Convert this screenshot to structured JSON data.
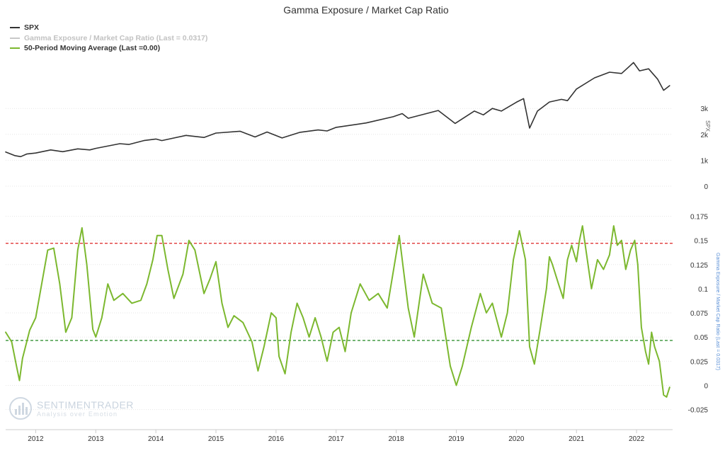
{
  "chart_data": {
    "type": "line",
    "title": "Gamma Exposure / Market Cap Ratio",
    "legend": {
      "placement": "top-left",
      "items": [
        {
          "label": "SPX",
          "color": "#333333"
        },
        {
          "label": "Gamma Exposure / Market Cap Ratio (Last = 0.0317)",
          "color": "#c8c8c8"
        },
        {
          "label": "50-Period Moving Average (Last =0.00)",
          "color": "#7cb82f"
        }
      ]
    },
    "x_axis": {
      "ticks": [
        "2012",
        "2013",
        "2014",
        "2015",
        "2016",
        "2017",
        "2018",
        "2019",
        "2020",
        "2021",
        "2022"
      ],
      "range": [
        2011.5,
        2022.6
      ]
    },
    "panels": [
      {
        "name": "spx",
        "ylabel": "SPX",
        "ylim": [
          0,
          5000
        ],
        "yticks": [
          {
            "value": 0,
            "label": "0"
          },
          {
            "value": 1000,
            "label": "1k"
          },
          {
            "value": 2000,
            "label": "2k"
          },
          {
            "value": 3000,
            "label": "3k"
          }
        ],
        "series": [
          {
            "name": "SPX",
            "color": "#333333",
            "points": [
              [
                2011.5,
                1320
              ],
              [
                2011.65,
                1180
              ],
              [
                2011.75,
                1140
              ],
              [
                2011.85,
                1240
              ],
              [
                2012.0,
                1280
              ],
              [
                2012.25,
                1400
              ],
              [
                2012.45,
                1330
              ],
              [
                2012.7,
                1440
              ],
              [
                2012.9,
                1400
              ],
              [
                2013.0,
                1460
              ],
              [
                2013.4,
                1640
              ],
              [
                2013.55,
                1610
              ],
              [
                2013.8,
                1760
              ],
              [
                2014.0,
                1820
              ],
              [
                2014.1,
                1760
              ],
              [
                2014.5,
                1960
              ],
              [
                2014.8,
                1880
              ],
              [
                2015.0,
                2050
              ],
              [
                2015.4,
                2120
              ],
              [
                2015.65,
                1900
              ],
              [
                2015.85,
                2090
              ],
              [
                2016.1,
                1860
              ],
              [
                2016.4,
                2080
              ],
              [
                2016.7,
                2170
              ],
              [
                2016.85,
                2130
              ],
              [
                2017.0,
                2270
              ],
              [
                2017.5,
                2440
              ],
              [
                2017.95,
                2680
              ],
              [
                2018.1,
                2800
              ],
              [
                2018.2,
                2620
              ],
              [
                2018.7,
                2920
              ],
              [
                2018.98,
                2420
              ],
              [
                2019.3,
                2900
              ],
              [
                2019.45,
                2750
              ],
              [
                2019.6,
                3000
              ],
              [
                2019.75,
                2900
              ],
              [
                2020.0,
                3240
              ],
              [
                2020.12,
                3380
              ],
              [
                2020.22,
                2240
              ],
              [
                2020.35,
                2900
              ],
              [
                2020.55,
                3250
              ],
              [
                2020.75,
                3350
              ],
              [
                2020.85,
                3300
              ],
              [
                2021.0,
                3750
              ],
              [
                2021.3,
                4180
              ],
              [
                2021.55,
                4400
              ],
              [
                2021.75,
                4350
              ],
              [
                2021.95,
                4770
              ],
              [
                2022.05,
                4450
              ],
              [
                2022.2,
                4530
              ],
              [
                2022.35,
                4130
              ],
              [
                2022.45,
                3700
              ],
              [
                2022.55,
                3880
              ]
            ]
          }
        ]
      },
      {
        "name": "gamma",
        "ylabel": "Gamma Exposure / Market Cap Ratio (Last = 0.0317)",
        "ylim": [
          -0.037,
          0.19
        ],
        "yticks": [
          {
            "value": -0.025,
            "label": "-0.025"
          },
          {
            "value": 0,
            "label": "0"
          },
          {
            "value": 0.025,
            "label": "0.025"
          },
          {
            "value": 0.05,
            "label": "0.05"
          },
          {
            "value": 0.075,
            "label": "0.075"
          },
          {
            "value": 0.1,
            "label": "0.1"
          },
          {
            "value": 0.125,
            "label": "0.125"
          },
          {
            "value": 0.15,
            "label": "0.15"
          },
          {
            "value": 0.175,
            "label": "0.175"
          }
        ],
        "reference_lines": [
          {
            "value": 0.147,
            "color": "#dd2222"
          },
          {
            "value": 0.0465,
            "color": "#228822"
          }
        ],
        "series": [
          {
            "name": "50-Period Moving Average (Last =0.00)",
            "color": "#7cb82f",
            "points": [
              [
                2011.5,
                0.055
              ],
              [
                2011.6,
                0.045
              ],
              [
                2011.68,
                0.02
              ],
              [
                2011.73,
                0.005
              ],
              [
                2011.78,
                0.028
              ],
              [
                2011.9,
                0.057
              ],
              [
                2012.0,
                0.07
              ],
              [
                2012.1,
                0.105
              ],
              [
                2012.2,
                0.14
              ],
              [
                2012.3,
                0.142
              ],
              [
                2012.4,
                0.105
              ],
              [
                2012.5,
                0.055
              ],
              [
                2012.6,
                0.07
              ],
              [
                2012.7,
                0.14
              ],
              [
                2012.77,
                0.163
              ],
              [
                2012.85,
                0.125
              ],
              [
                2012.95,
                0.058
              ],
              [
                2013.0,
                0.05
              ],
              [
                2013.1,
                0.07
              ],
              [
                2013.2,
                0.105
              ],
              [
                2013.3,
                0.088
              ],
              [
                2013.45,
                0.095
              ],
              [
                2013.6,
                0.085
              ],
              [
                2013.75,
                0.088
              ],
              [
                2013.85,
                0.105
              ],
              [
                2013.95,
                0.13
              ],
              [
                2014.02,
                0.155
              ],
              [
                2014.1,
                0.155
              ],
              [
                2014.2,
                0.12
              ],
              [
                2014.3,
                0.09
              ],
              [
                2014.45,
                0.115
              ],
              [
                2014.55,
                0.15
              ],
              [
                2014.65,
                0.14
              ],
              [
                2014.8,
                0.095
              ],
              [
                2014.9,
                0.11
              ],
              [
                2015.0,
                0.128
              ],
              [
                2015.1,
                0.085
              ],
              [
                2015.2,
                0.06
              ],
              [
                2015.3,
                0.072
              ],
              [
                2015.45,
                0.065
              ],
              [
                2015.6,
                0.045
              ],
              [
                2015.7,
                0.015
              ],
              [
                2015.8,
                0.04
              ],
              [
                2015.92,
                0.075
              ],
              [
                2016.0,
                0.07
              ],
              [
                2016.05,
                0.03
              ],
              [
                2016.15,
                0.012
              ],
              [
                2016.25,
                0.055
              ],
              [
                2016.35,
                0.085
              ],
              [
                2016.45,
                0.07
              ],
              [
                2016.55,
                0.05
              ],
              [
                2016.65,
                0.07
              ],
              [
                2016.75,
                0.05
              ],
              [
                2016.85,
                0.025
              ],
              [
                2016.95,
                0.055
              ],
              [
                2017.05,
                0.06
              ],
              [
                2017.15,
                0.035
              ],
              [
                2017.25,
                0.075
              ],
              [
                2017.4,
                0.105
              ],
              [
                2017.55,
                0.088
              ],
              [
                2017.7,
                0.095
              ],
              [
                2017.85,
                0.08
              ],
              [
                2017.97,
                0.125
              ],
              [
                2018.05,
                0.155
              ],
              [
                2018.12,
                0.12
              ],
              [
                2018.2,
                0.08
              ],
              [
                2018.3,
                0.05
              ],
              [
                2018.45,
                0.115
              ],
              [
                2018.6,
                0.085
              ],
              [
                2018.75,
                0.08
              ],
              [
                2018.9,
                0.02
              ],
              [
                2019.0,
                0.0
              ],
              [
                2019.1,
                0.02
              ],
              [
                2019.25,
                0.06
              ],
              [
                2019.4,
                0.095
              ],
              [
                2019.5,
                0.075
              ],
              [
                2019.6,
                0.085
              ],
              [
                2019.75,
                0.05
              ],
              [
                2019.85,
                0.075
              ],
              [
                2019.95,
                0.13
              ],
              [
                2020.05,
                0.16
              ],
              [
                2020.15,
                0.13
              ],
              [
                2020.22,
                0.04
              ],
              [
                2020.3,
                0.022
              ],
              [
                2020.4,
                0.06
              ],
              [
                2020.5,
                0.1
              ],
              [
                2020.55,
                0.133
              ],
              [
                2020.6,
                0.125
              ],
              [
                2020.7,
                0.105
              ],
              [
                2020.78,
                0.09
              ],
              [
                2020.85,
                0.13
              ],
              [
                2020.92,
                0.145
              ],
              [
                2021.0,
                0.128
              ],
              [
                2021.05,
                0.15
              ],
              [
                2021.1,
                0.165
              ],
              [
                2021.17,
                0.135
              ],
              [
                2021.25,
                0.1
              ],
              [
                2021.35,
                0.13
              ],
              [
                2021.45,
                0.12
              ],
              [
                2021.55,
                0.135
              ],
              [
                2021.62,
                0.165
              ],
              [
                2021.68,
                0.145
              ],
              [
                2021.75,
                0.15
              ],
              [
                2021.82,
                0.12
              ],
              [
                2021.9,
                0.14
              ],
              [
                2021.97,
                0.15
              ],
              [
                2022.02,
                0.125
              ],
              [
                2022.08,
                0.06
              ],
              [
                2022.15,
                0.035
              ],
              [
                2022.2,
                0.022
              ],
              [
                2022.25,
                0.055
              ],
              [
                2022.3,
                0.04
              ],
              [
                2022.38,
                0.025
              ],
              [
                2022.45,
                -0.01
              ],
              [
                2022.5,
                -0.012
              ],
              [
                2022.55,
                -0.002
              ]
            ]
          }
        ]
      }
    ],
    "grid": true
  },
  "watermark": {
    "brand": "SENTIMENTRADER",
    "tagline": "Analysis over Emotion"
  }
}
